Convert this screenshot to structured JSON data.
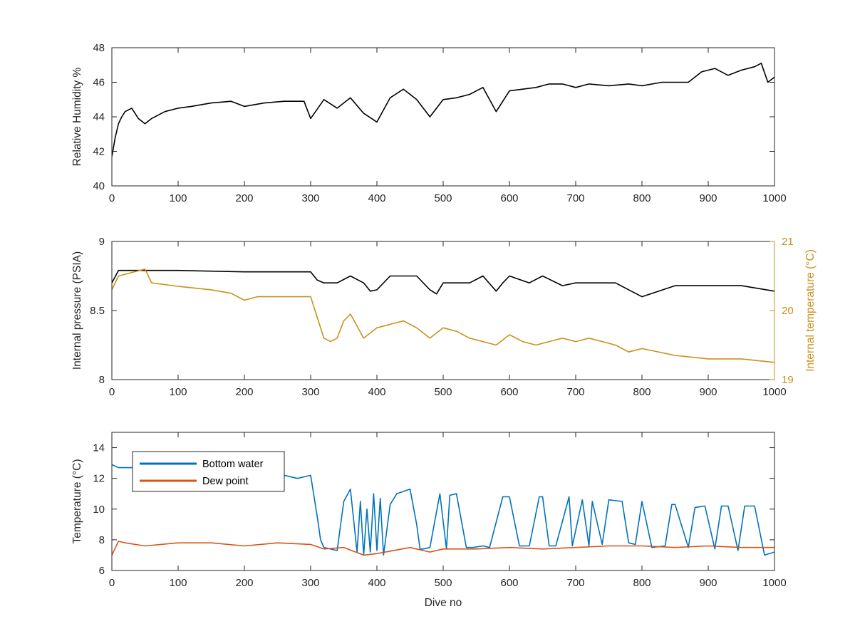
{
  "chart_data": [
    {
      "type": "line",
      "xlabel": "",
      "ylabel": "Relative Humidity %",
      "xlim": [
        0,
        1000
      ],
      "ylim": [
        40,
        48
      ],
      "xticks": [
        "0",
        "100",
        "200",
        "300",
        "400",
        "500",
        "600",
        "700",
        "800",
        "900",
        "1000"
      ],
      "yticks": [
        "40",
        "42",
        "44",
        "46",
        "48"
      ],
      "grid": false,
      "series": [
        {
          "color": "#000000",
          "x": [
            0,
            5,
            10,
            15,
            20,
            30,
            40,
            50,
            60,
            80,
            100,
            120,
            150,
            180,
            200,
            230,
            260,
            290,
            300,
            320,
            340,
            360,
            380,
            400,
            420,
            440,
            460,
            480,
            500,
            520,
            540,
            560,
            580,
            600,
            620,
            640,
            660,
            680,
            700,
            720,
            750,
            780,
            800,
            830,
            850,
            870,
            890,
            910,
            930,
            950,
            970,
            980,
            990,
            1000
          ],
          "values": [
            41.7,
            42.8,
            43.6,
            44.0,
            44.3,
            44.5,
            43.9,
            43.6,
            43.9,
            44.3,
            44.5,
            44.6,
            44.8,
            44.9,
            44.6,
            44.8,
            44.9,
            44.9,
            43.9,
            45.0,
            44.5,
            45.1,
            44.2,
            43.7,
            45.1,
            45.6,
            45.0,
            44.0,
            45.0,
            45.1,
            45.3,
            45.7,
            44.3,
            45.5,
            45.6,
            45.7,
            45.9,
            45.9,
            45.7,
            45.9,
            45.8,
            45.9,
            45.8,
            46.0,
            46.0,
            46.0,
            46.6,
            46.8,
            46.4,
            46.7,
            46.9,
            47.1,
            46.0,
            46.3
          ]
        }
      ]
    },
    {
      "type": "line",
      "xlabel": "",
      "ylabel": "Internal pressure (PSIA)",
      "y2label": "Internal temperature (°C)",
      "xlim": [
        0,
        1000
      ],
      "ylim": [
        8,
        9
      ],
      "y2lim": [
        19,
        21
      ],
      "xticks": [
        "0",
        "100",
        "200",
        "300",
        "400",
        "500",
        "600",
        "700",
        "800",
        "900",
        "1000"
      ],
      "yticks": [
        "8",
        "8.5",
        "9"
      ],
      "y2ticks": [
        "19",
        "20",
        "21"
      ],
      "grid": false,
      "series": [
        {
          "axis": "left",
          "color": "#000000",
          "x": [
            0,
            10,
            100,
            200,
            290,
            300,
            310,
            320,
            340,
            360,
            380,
            390,
            400,
            420,
            440,
            460,
            480,
            490,
            500,
            540,
            560,
            580,
            590,
            600,
            630,
            650,
            680,
            700,
            720,
            760,
            800,
            850,
            900,
            950,
            1000
          ],
          "values": [
            8.7,
            8.79,
            8.79,
            8.78,
            8.78,
            8.78,
            8.72,
            8.7,
            8.7,
            8.75,
            8.7,
            8.64,
            8.65,
            8.75,
            8.75,
            8.75,
            8.65,
            8.62,
            8.7,
            8.7,
            8.75,
            8.64,
            8.7,
            8.75,
            8.7,
            8.75,
            8.68,
            8.7,
            8.7,
            8.7,
            8.6,
            8.68,
            8.68,
            8.68,
            8.64
          ]
        },
        {
          "axis": "right",
          "color": "#c9901c",
          "x": [
            0,
            10,
            50,
            60,
            100,
            150,
            180,
            200,
            220,
            250,
            290,
            300,
            310,
            320,
            330,
            340,
            350,
            360,
            380,
            400,
            420,
            440,
            460,
            480,
            500,
            520,
            540,
            560,
            580,
            600,
            620,
            640,
            660,
            680,
            700,
            720,
            740,
            760,
            780,
            800,
            850,
            900,
            950,
            1000
          ],
          "values": [
            20.3,
            20.5,
            20.6,
            20.4,
            20.35,
            20.3,
            20.25,
            20.15,
            20.2,
            20.2,
            20.2,
            20.2,
            19.9,
            19.6,
            19.55,
            19.6,
            19.85,
            19.95,
            19.6,
            19.75,
            19.8,
            19.85,
            19.75,
            19.6,
            19.75,
            19.7,
            19.6,
            19.55,
            19.5,
            19.65,
            19.55,
            19.5,
            19.55,
            19.6,
            19.55,
            19.6,
            19.55,
            19.5,
            19.4,
            19.45,
            19.35,
            19.3,
            19.3,
            19.25
          ]
        }
      ]
    },
    {
      "type": "line",
      "xlabel": "Dive no",
      "ylabel": "Temperature (°C)",
      "xlim": [
        0,
        1000
      ],
      "ylim": [
        6,
        15
      ],
      "xticks": [
        "0",
        "100",
        "200",
        "300",
        "400",
        "500",
        "600",
        "700",
        "800",
        "900",
        "1000"
      ],
      "yticks": [
        "6",
        "8",
        "10",
        "12",
        "14"
      ],
      "grid": false,
      "legend_position": "top-left",
      "series": [
        {
          "name": "Bottom water",
          "color": "#0072bd",
          "x": [
            0,
            10,
            30,
            80,
            150,
            200,
            250,
            280,
            300,
            310,
            315,
            320,
            340,
            350,
            360,
            370,
            375,
            380,
            385,
            390,
            395,
            400,
            405,
            410,
            420,
            430,
            450,
            460,
            465,
            470,
            480,
            495,
            505,
            510,
            520,
            535,
            545,
            560,
            570,
            590,
            600,
            615,
            630,
            645,
            650,
            660,
            670,
            690,
            695,
            710,
            720,
            725,
            740,
            750,
            770,
            780,
            790,
            800,
            815,
            835,
            845,
            850,
            870,
            880,
            895,
            910,
            920,
            930,
            945,
            955,
            970,
            985,
            1000
          ],
          "values": [
            12.9,
            12.7,
            12.7,
            12.8,
            12.7,
            12.6,
            12.3,
            12.0,
            12.2,
            9.5,
            8.0,
            7.5,
            7.3,
            10.5,
            11.3,
            7.2,
            10.5,
            7.0,
            10.0,
            7.2,
            11.0,
            7.3,
            10.7,
            7.0,
            10.3,
            11.0,
            11.3,
            9.0,
            7.4,
            7.4,
            7.5,
            11.0,
            7.4,
            10.9,
            11.0,
            7.5,
            7.5,
            7.6,
            7.5,
            10.8,
            10.8,
            7.6,
            7.6,
            10.8,
            10.8,
            7.6,
            7.6,
            10.8,
            7.6,
            10.6,
            7.6,
            10.5,
            7.7,
            10.6,
            10.5,
            7.8,
            7.7,
            10.5,
            7.5,
            7.6,
            10.3,
            10.3,
            7.5,
            10.1,
            10.2,
            7.4,
            10.2,
            10.2,
            7.3,
            10.2,
            10.2,
            7.0,
            7.2
          ]
        },
        {
          "name": "Dew point",
          "color": "#d95319",
          "x": [
            0,
            10,
            20,
            50,
            100,
            150,
            200,
            250,
            300,
            320,
            350,
            380,
            400,
            450,
            480,
            500,
            550,
            600,
            650,
            700,
            750,
            800,
            850,
            900,
            950,
            1000
          ],
          "values": [
            7.0,
            7.9,
            7.8,
            7.6,
            7.8,
            7.8,
            7.6,
            7.8,
            7.7,
            7.4,
            7.5,
            7.0,
            7.1,
            7.5,
            7.2,
            7.4,
            7.4,
            7.5,
            7.4,
            7.5,
            7.6,
            7.6,
            7.5,
            7.6,
            7.5,
            7.5
          ]
        }
      ]
    }
  ]
}
